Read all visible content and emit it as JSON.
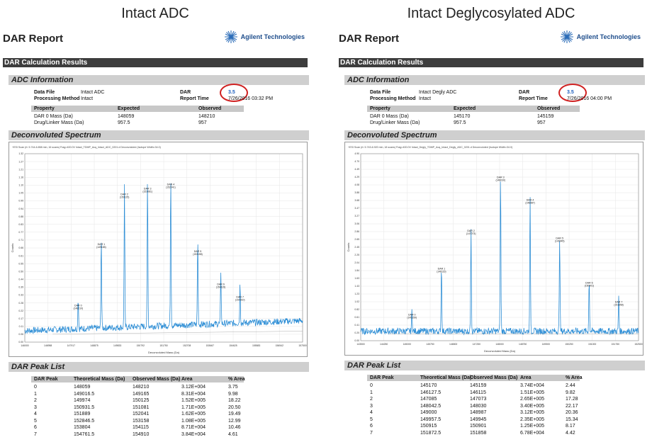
{
  "panels": [
    {
      "heading": "Intact ADC",
      "report_title": "DAR Report",
      "brand": "Agilent Technologies",
      "calc_title": "DAR Calculation Results",
      "adc_info_title": "ADC Information",
      "data_file_label": "Data File",
      "data_file": "Intact ADC",
      "method_label": "Processing Method",
      "method": "Intact",
      "dar_label": "DAR",
      "dar": "3.5",
      "report_time_label": "Report Time",
      "report_time": "7/26/2016 03:32 PM",
      "prop_headers": [
        "Property",
        "Expected",
        "Observed"
      ],
      "props": [
        {
          "name": "DAR 0 Mass (Da)",
          "expected": "148059",
          "observed": "148210"
        },
        {
          "name": "Drug/Linker Mass (Da)",
          "expected": "957.5",
          "observed": "957"
        }
      ],
      "spectrum_title": "Deconvoluted Spectrum",
      "spectrum_caption": "+ESI Scan (rt: 5.744-6.858 min, 16 scans) Frag=400.0V Intact_TDMP_Acq_Intact_ADC_0201.d Deconvoluted (Isotope Width=34.0)",
      "y_axis_label": "Counts",
      "x_axis_label": "Deconvoluted Mass (Da)",
      "peak_list_title": "DAR Peak List",
      "peak_headers": [
        "DAR Peak",
        "Theoretical Mass (Da)",
        "Observed Mass (Da)",
        "Area",
        "% Area"
      ],
      "peaks": [
        [
          "0",
          "148059",
          "148210",
          "3.12E+004",
          "3.75"
        ],
        [
          "1",
          "149016.5",
          "149165",
          "8.31E+004",
          "9.98"
        ],
        [
          "2",
          "149974",
          "150125",
          "1.52E+005",
          "18.22"
        ],
        [
          "3",
          "150931.5",
          "151081",
          "1.71E+005",
          "20.50"
        ],
        [
          "4",
          "151889",
          "152041",
          "1.62E+005",
          "19.49"
        ],
        [
          "5",
          "152846.5",
          "153158",
          "1.08E+005",
          "12.99"
        ],
        [
          "6",
          "153804",
          "154115",
          "8.71E+004",
          "10.46"
        ],
        [
          "7",
          "154761.5",
          "154910",
          "3.84E+004",
          "4.61"
        ]
      ]
    },
    {
      "heading": "Intact Deglycosylated ADC",
      "report_title": "DAR Report",
      "brand": "Agilent Technologies",
      "calc_title": "DAR Calculation Results",
      "adc_info_title": "ADC Information",
      "data_file_label": "Data File",
      "data_file": "Intact Degly ADC",
      "method_label": "Processing Method",
      "method": "Intact",
      "dar_label": "DAR",
      "dar": "3.5",
      "report_time_label": "Report Time",
      "report_time": "7/26/2016 04:00 PM",
      "prop_headers": [
        "Property",
        "Expected",
        "Observed"
      ],
      "props": [
        {
          "name": "DAR 0 Mass (Da)",
          "expected": "145170",
          "observed": "145159"
        },
        {
          "name": "Drug/Linker Mass (Da)",
          "expected": "957.5",
          "observed": "957"
        }
      ],
      "spectrum_title": "Deconvoluted Spectrum",
      "spectrum_caption": "+ESI Scan (rt: 5.743-6.920 min, 18 scans) Frag=400.0V Intact_Degly_TDMP_Acq_Intact_Degly_ADC_0201.d Deconvoluted (Isotope Width=34.0)",
      "y_axis_label": "Counts",
      "x_axis_label": "Deconvoluted Mass (Da)",
      "peak_list_title": "DAR Peak List",
      "peak_headers": [
        "DAR Peak",
        "Theoretical Mass (Da)",
        "Observed Mass (Da)",
        "Area",
        "% Area"
      ],
      "peaks": [
        [
          "0",
          "145170",
          "145159",
          "3.74E+004",
          "2.44"
        ],
        [
          "1",
          "146127.5",
          "146115",
          "1.51E+005",
          "9.82"
        ],
        [
          "2",
          "147085",
          "147073",
          "2.65E+005",
          "17.28"
        ],
        [
          "3",
          "148042.5",
          "148030",
          "3.40E+005",
          "22.17"
        ],
        [
          "4",
          "149000",
          "148987",
          "3.12E+005",
          "20.36"
        ],
        [
          "5",
          "149957.5",
          "149945",
          "2.35E+005",
          "15.34"
        ],
        [
          "6",
          "150915",
          "150901",
          "1.25E+005",
          "8.17"
        ],
        [
          "7",
          "151872.5",
          "151858",
          "6.78E+004",
          "4.42"
        ]
      ]
    }
  ],
  "chart_data": [
    {
      "type": "line",
      "title": "",
      "xlabel": "Deconvoluted Mass (Da)",
      "ylabel": "Counts",
      "xlim": [
        146000,
        157500
      ],
      "ylim": [
        0,
        1.32
      ],
      "baseline": 0.08,
      "noise_rise": 0.07,
      "peaks": [
        {
          "label": "DAR 0",
          "sub": "(148210)",
          "x": 148210,
          "y": 0.22
        },
        {
          "label": "DAR 1",
          "sub": "(149165)",
          "x": 149165,
          "y": 0.65
        },
        {
          "label": "DAR 2",
          "sub": "(150125)",
          "x": 150125,
          "y": 1.0
        },
        {
          "label": "DAR 3",
          "sub": "(151081)",
          "x": 151081,
          "y": 1.04
        },
        {
          "label": "DAR 4",
          "sub": "(152041)",
          "x": 152041,
          "y": 1.07
        },
        {
          "label": "DAR 5",
          "sub": "(153158)",
          "x": 153158,
          "y": 0.6
        },
        {
          "label": "DAR 6",
          "sub": "(154115)",
          "x": 154115,
          "y": 0.37
        },
        {
          "label": "DAR 7",
          "sub": "(154910)",
          "x": 154910,
          "y": 0.28
        }
      ],
      "series_color": "#2f8fd6"
    },
    {
      "type": "line",
      "title": "",
      "xlabel": "Deconvoluted Mass (Da)",
      "ylabel": "Counts",
      "xlim": [
        143500,
        152500
      ],
      "ylim": [
        0,
        4.9
      ],
      "baseline": 0.25,
      "noise_rise": 0.0,
      "peaks": [
        {
          "label": "DAR 0",
          "sub": "(145159)",
          "x": 145159,
          "y": 0.55
        },
        {
          "label": "DAR 1",
          "sub": "(146115)",
          "x": 146115,
          "y": 1.75
        },
        {
          "label": "DAR 2",
          "sub": "(147073)",
          "x": 147073,
          "y": 2.75
        },
        {
          "label": "DAR 3",
          "sub": "(148030)",
          "x": 148030,
          "y": 4.15
        },
        {
          "label": "DAR 4",
          "sub": "(148987)",
          "x": 148987,
          "y": 3.55
        },
        {
          "label": "DAR 5",
          "sub": "(149945)",
          "x": 149945,
          "y": 2.55
        },
        {
          "label": "DAR 6",
          "sub": "(150901)",
          "x": 150901,
          "y": 1.38
        },
        {
          "label": "DAR 7",
          "sub": "(151858)",
          "x": 151858,
          "y": 0.88
        }
      ],
      "series_color": "#2f8fd6"
    }
  ]
}
